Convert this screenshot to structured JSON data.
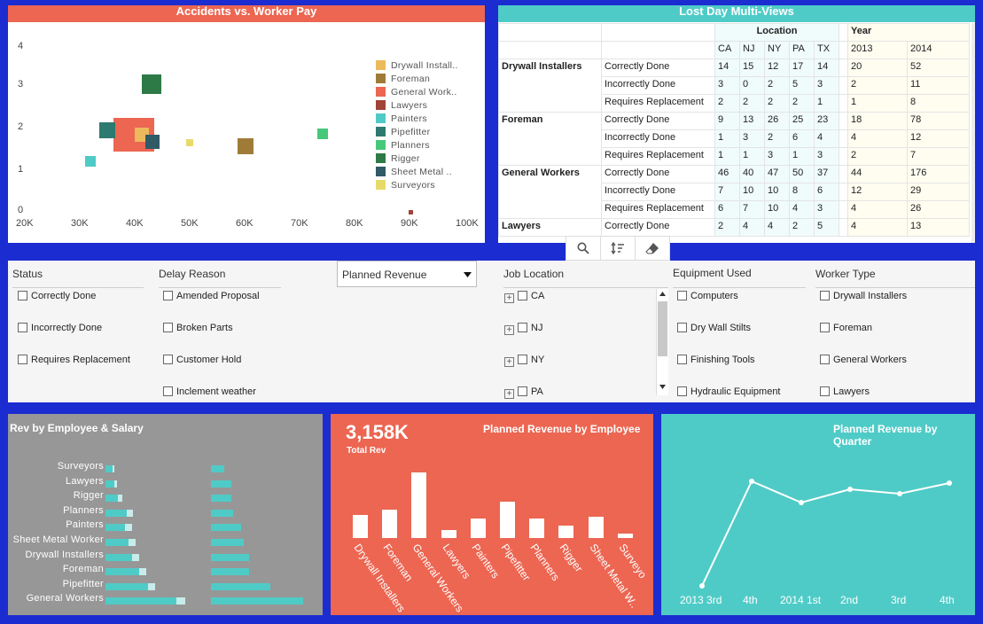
{
  "scatter": {
    "title": "Accidents vs. Worker Pay",
    "y_ticks": [
      "4",
      "3",
      "2",
      "1",
      "0"
    ],
    "x_ticks": [
      "20K",
      "30K",
      "40K",
      "50K",
      "60K",
      "70K",
      "80K",
      "90K",
      "100K"
    ],
    "legend": [
      {
        "label": "Drywall Install..",
        "color": "#ecb95c"
      },
      {
        "label": "Foreman",
        "color": "#a07b38"
      },
      {
        "label": "General Work..",
        "color": "#ec6652"
      },
      {
        "label": "Lawyers",
        "color": "#a04438"
      },
      {
        "label": "Painters",
        "color": "#4fcbc7"
      },
      {
        "label": "Pipefitter",
        "color": "#2d7a70"
      },
      {
        "label": "Planners",
        "color": "#46c87a"
      },
      {
        "label": "Rigger",
        "color": "#2e7a46"
      },
      {
        "label": "Sheet Metal ..",
        "color": "#2f5a66"
      },
      {
        "label": "Surveyors",
        "color": "#e8da6a"
      }
    ]
  },
  "lost": {
    "title": "Lost Day Multi-Views",
    "location_label": "Location",
    "year_label": "Year",
    "locations": [
      "CA",
      "NJ",
      "NY",
      "PA",
      "TX"
    ],
    "years": [
      "2013",
      "2014"
    ],
    "groups": [
      {
        "name": "Drywall Installers",
        "rows": [
          {
            "status": "Correctly Done",
            "loc": [
              "14",
              "15",
              "12",
              "17",
              "14"
            ],
            "yr": [
              "20",
              "52"
            ]
          },
          {
            "status": "Incorrectly Done",
            "loc": [
              "3",
              "0",
              "2",
              "5",
              "3"
            ],
            "yr": [
              "2",
              "11"
            ]
          },
          {
            "status": "Requires Replacement",
            "loc": [
              "2",
              "2",
              "2",
              "2",
              "1"
            ],
            "yr": [
              "1",
              "8"
            ]
          }
        ]
      },
      {
        "name": "Foreman",
        "rows": [
          {
            "status": "Correctly Done",
            "loc": [
              "9",
              "13",
              "26",
              "25",
              "23"
            ],
            "yr": [
              "18",
              "78"
            ]
          },
          {
            "status": "Incorrectly Done",
            "loc": [
              "1",
              "3",
              "2",
              "6",
              "4"
            ],
            "yr": [
              "4",
              "12"
            ]
          },
          {
            "status": "Requires Replacement",
            "loc": [
              "1",
              "1",
              "3",
              "1",
              "3"
            ],
            "yr": [
              "2",
              "7"
            ]
          }
        ]
      },
      {
        "name": "General Workers",
        "rows": [
          {
            "status": "Correctly Done",
            "loc": [
              "46",
              "40",
              "47",
              "50",
              "37"
            ],
            "yr": [
              "44",
              "176"
            ]
          },
          {
            "status": "Incorrectly Done",
            "loc": [
              "7",
              "10",
              "10",
              "8",
              "6"
            ],
            "yr": [
              "12",
              "29"
            ]
          },
          {
            "status": "Requires Replacement",
            "loc": [
              "6",
              "7",
              "10",
              "4",
              "3"
            ],
            "yr": [
              "4",
              "26"
            ]
          }
        ]
      },
      {
        "name": "Lawyers",
        "rows": [
          {
            "status": "Correctly Done",
            "loc": [
              "2",
              "4",
              "4",
              "2",
              "5"
            ],
            "yr": [
              "4",
              "13"
            ]
          }
        ]
      }
    ]
  },
  "filters": {
    "status": {
      "title": "Status",
      "items": [
        "Correctly Done",
        "Incorrectly Done",
        "Requires Replacement"
      ]
    },
    "delay": {
      "title": "Delay Reason",
      "items": [
        "Amended Proposal",
        "Broken Parts",
        "Customer Hold",
        "Inclement weather"
      ]
    },
    "dropdown": {
      "value": "Planned Revenue"
    },
    "job": {
      "title": "Job Location",
      "items": [
        "CA",
        "NJ",
        "NY",
        "PA"
      ]
    },
    "equipment": {
      "title": "Equipment Used",
      "items": [
        "Computers",
        "Dry Wall Stilts",
        "Finishing Tools",
        "Hydraulic Equipment"
      ]
    },
    "worker": {
      "title": "Worker Type",
      "items": [
        "Drywall Installers",
        "Foreman",
        "General Workers",
        "Lawyers"
      ]
    }
  },
  "rev_emp_salary": {
    "title": "Rev by Employee & Salary",
    "employees": [
      "Surveyors",
      "Lawyers",
      "Rigger",
      "Planners",
      "Painters",
      "Sheet Metal Worker",
      "Drywall Installers",
      "Foreman",
      "Pipefitter",
      "General Workers"
    ]
  },
  "planned_emp": {
    "kpi": "3,158K",
    "kpi_label": "Total Rev",
    "title": "Planned Revenue by Employee",
    "categories": [
      "Drywall Installers",
      "Foreman",
      "General Workers",
      "Lawyers",
      "Painters",
      "Pipefitter",
      "Planners",
      "Rigger",
      "Sheet Metal W..",
      "Surveyo"
    ]
  },
  "planned_q": {
    "title": "Planned Revenue by Quarter",
    "quarters": [
      "2013 3rd",
      "4th",
      "2014 1st",
      "2nd",
      "3rd",
      "4th"
    ]
  }
}
